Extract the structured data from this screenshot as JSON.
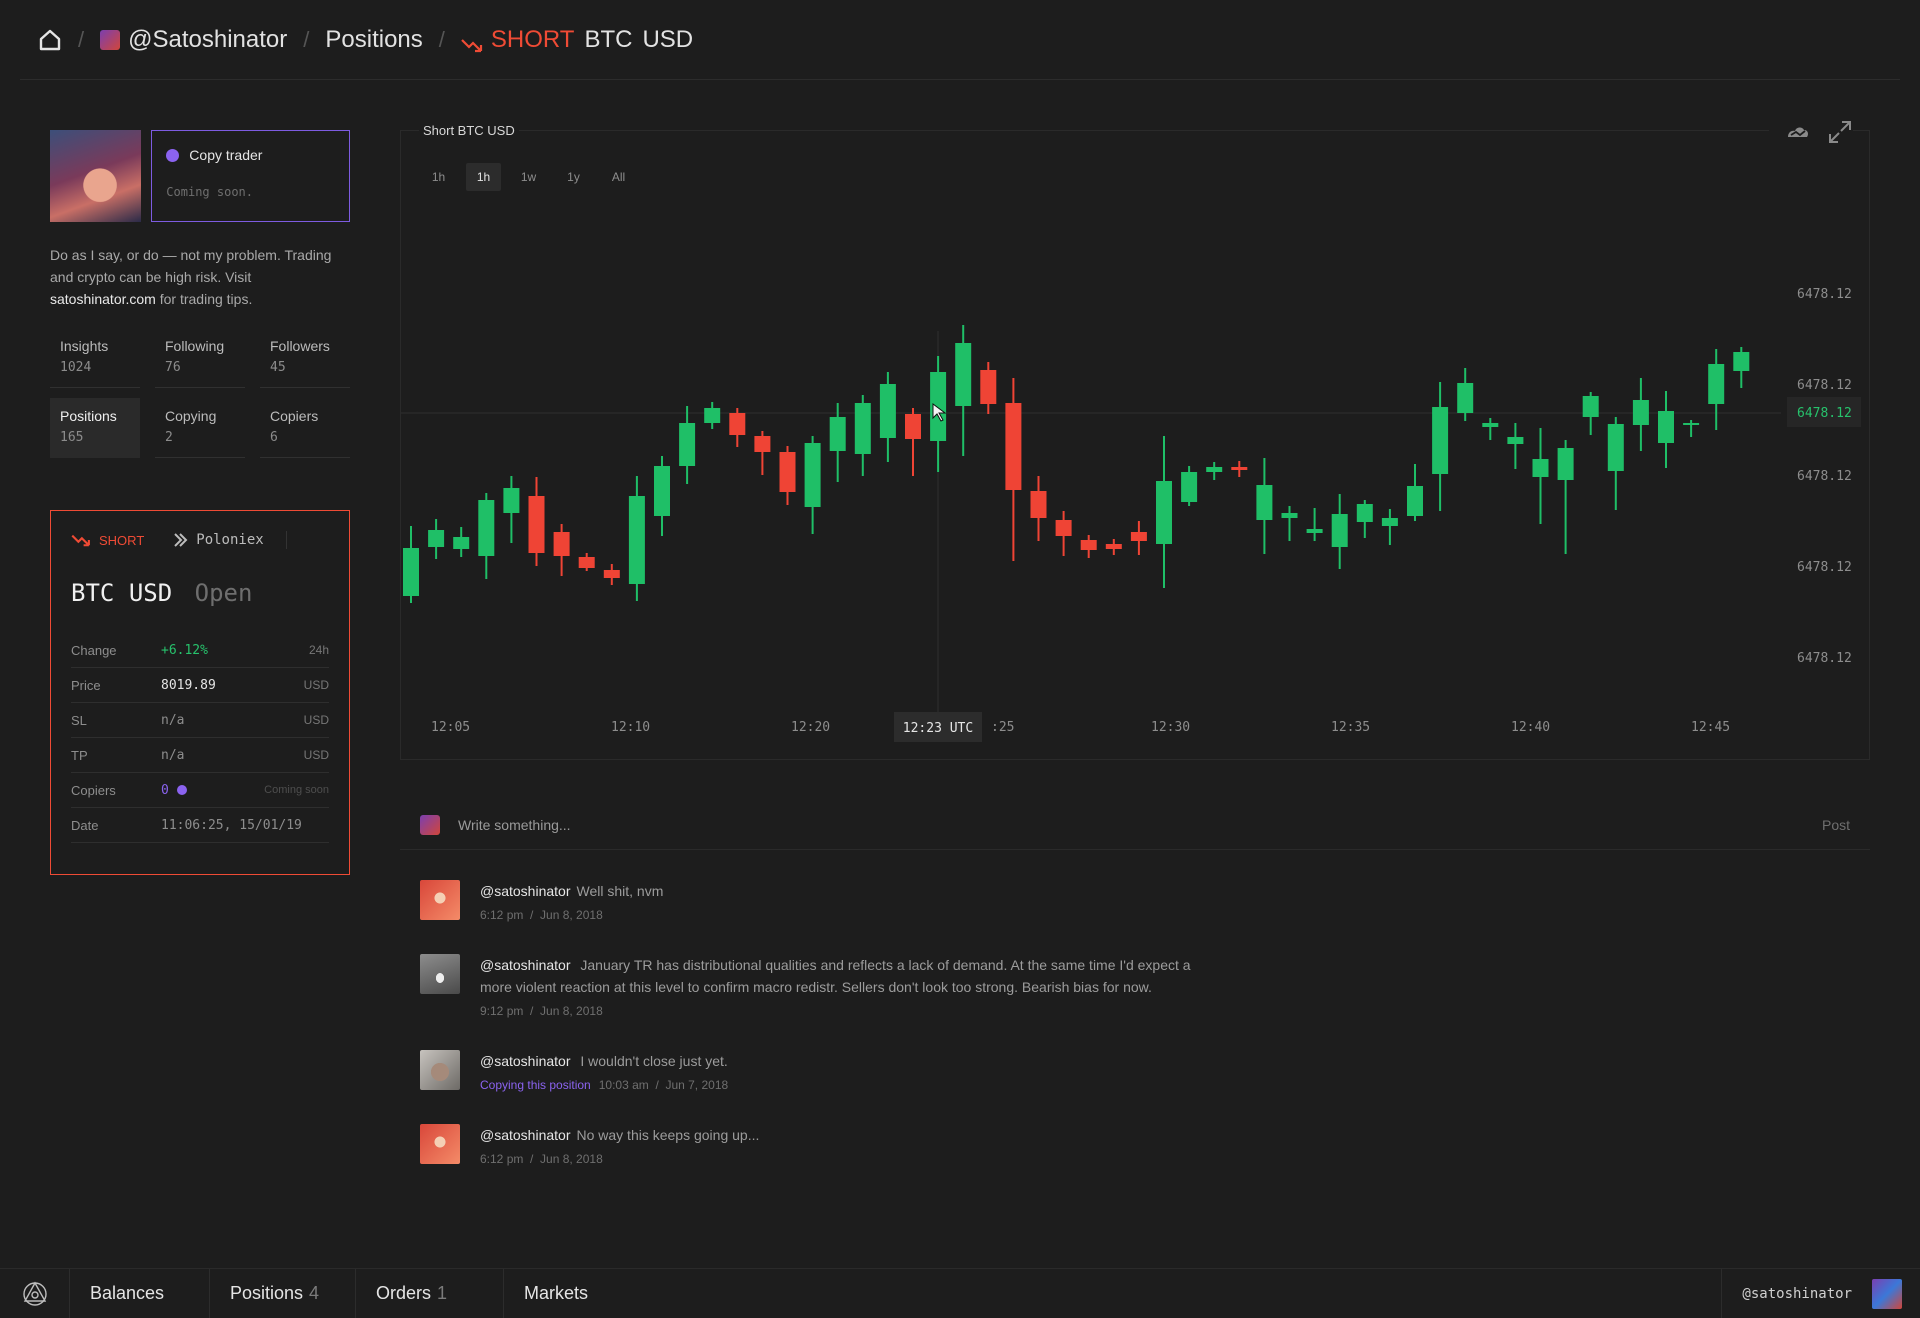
{
  "breadcrumb": {
    "user": "@Satoshinator",
    "section": "Positions",
    "side": "SHORT",
    "base": "BTC",
    "quote": "USD"
  },
  "profile": {
    "copy_trader": {
      "title": "Copy trader",
      "subtitle": "Coming soon."
    },
    "bio_before": "Do as I say, or do — not my problem. Trading and crypto can be high risk. Visit ",
    "bio_link": "satoshinator.com",
    "bio_after": " for trading tips.",
    "stats": [
      {
        "label": "Insights",
        "value": "1024"
      },
      {
        "label": "Following",
        "value": "76"
      },
      {
        "label": "Followers",
        "value": "45"
      },
      {
        "label": "Positions",
        "value": "165",
        "active": true
      },
      {
        "label": "Copying",
        "value": "2"
      },
      {
        "label": "Copiers",
        "value": "6"
      }
    ]
  },
  "position": {
    "side": "SHORT",
    "exchange": "Poloniex",
    "base": "BTC",
    "quote": "USD",
    "status": "Open",
    "rows": {
      "change": {
        "label": "Change",
        "value": "+6.12%",
        "unit": "24h"
      },
      "price": {
        "label": "Price",
        "value": "8019.89",
        "unit": "USD"
      },
      "sl": {
        "label": "SL",
        "value": "n/a",
        "unit": "USD"
      },
      "tp": {
        "label": "TP",
        "value": "n/a",
        "unit": "USD"
      },
      "copiers": {
        "label": "Copiers",
        "value": "0",
        "unit": "Coming soon"
      },
      "date": {
        "label": "Date",
        "value": "11:06:25, 15/01/19"
      }
    }
  },
  "chart": {
    "title": "Short BTC USD",
    "timeframes": [
      "1h",
      "1h",
      "1w",
      "1y",
      "All"
    ],
    "active_timeframe": 1,
    "crosshair_label": "12:23 UTC",
    "highlight_price": "6478.12",
    "colors": {
      "up": "#1fbf67",
      "down": "#ef4435",
      "bg": "#1d1d1d"
    }
  },
  "chart_data": {
    "type": "candlestick",
    "x_tick_labels": [
      "12:05",
      "12:10",
      "12:20",
      ":25",
      "12:30",
      "12:35",
      "12:40",
      "12:45"
    ],
    "y_tick_labels": [
      "6478.12",
      "6478.12",
      "6478.12",
      "6478.12",
      "6478.12"
    ],
    "candles": [
      [
        340,
        292,
        270,
        347
      ],
      [
        291,
        274,
        263,
        303
      ],
      [
        293,
        281,
        271,
        301
      ],
      [
        300,
        244,
        237,
        323
      ],
      [
        257,
        232,
        220,
        287
      ],
      [
        240,
        297,
        221,
        310
      ],
      [
        276,
        300,
        268,
        320
      ],
      [
        301,
        312,
        297,
        315
      ],
      [
        314,
        322,
        308,
        329
      ],
      [
        328,
        240,
        220,
        345
      ],
      [
        260,
        210,
        200,
        280
      ],
      [
        210,
        167,
        150,
        228
      ],
      [
        167,
        152,
        146,
        173
      ],
      [
        157,
        179,
        152,
        191
      ],
      [
        180,
        196,
        175,
        219
      ],
      [
        196,
        236,
        190,
        249
      ],
      [
        251,
        187,
        180,
        278
      ],
      [
        195,
        161,
        147,
        226
      ],
      [
        198,
        147,
        139,
        220
      ],
      [
        182,
        128,
        116,
        206
      ],
      [
        158,
        183,
        152,
        220
      ],
      [
        185,
        116,
        100,
        216
      ],
      [
        150,
        87,
        69,
        200
      ],
      [
        114,
        148,
        106,
        158
      ],
      [
        147,
        234,
        122,
        305
      ],
      [
        235,
        262,
        220,
        285
      ],
      [
        264,
        280,
        255,
        300
      ],
      [
        284,
        294,
        279,
        302
      ],
      [
        288,
        293,
        283,
        299
      ],
      [
        276,
        285,
        265,
        299
      ],
      [
        288,
        225,
        180,
        332
      ],
      [
        246,
        216,
        210,
        250
      ],
      [
        216,
        211,
        206,
        224
      ],
      [
        211,
        214,
        205,
        221
      ],
      [
        264,
        229,
        202,
        298
      ],
      [
        262,
        257,
        250,
        285
      ],
      [
        277,
        273,
        252,
        285
      ],
      [
        291,
        258,
        238,
        313
      ],
      [
        266,
        248,
        244,
        282
      ],
      [
        270,
        262,
        253,
        289
      ],
      [
        260,
        230,
        208,
        265
      ],
      [
        218,
        151,
        126,
        255
      ],
      [
        157,
        127,
        112,
        165
      ],
      [
        171,
        167,
        162,
        184
      ],
      [
        188,
        181,
        167,
        213
      ],
      [
        221,
        203,
        172,
        268
      ],
      [
        224,
        192,
        184,
        298
      ],
      [
        161,
        140,
        136,
        179
      ],
      [
        215,
        168,
        161,
        254
      ],
      [
        169,
        144,
        122,
        195
      ],
      [
        187,
        155,
        135,
        212
      ],
      [
        168,
        167,
        164,
        181
      ],
      [
        148,
        108,
        93,
        174
      ],
      [
        115,
        96,
        91,
        132
      ]
    ],
    "crosshair": {
      "x_label": "12:23 UTC",
      "price": "6478.12"
    }
  },
  "composer": {
    "placeholder": "Write something...",
    "post_label": "Post"
  },
  "feed": [
    {
      "user": "@satoshinator",
      "text": "Well shit, nvm",
      "time": "6:12 pm",
      "date": "Jun 8, 2018"
    },
    {
      "user": "@satoshinator",
      "text": "January TR has distributional qualities and reflects a lack of demand. At the same time I'd expect a more violent reaction at this level to confirm macro redistr. Sellers don't look too strong. Bearish bias for now.",
      "time": "9:12 pm",
      "date": "Jun 8, 2018"
    },
    {
      "user": "@satoshinator",
      "text": "I wouldn't close just yet.",
      "tag": "Copying this position",
      "time": "10:03 am",
      "date": "Jun 7, 2018"
    },
    {
      "user": "@satoshinator",
      "text": "No way this keeps going up...",
      "time": "6:12 pm",
      "date": "Jun 8, 2018"
    }
  ],
  "bottombar": {
    "items": [
      {
        "label": "Balances",
        "count": ""
      },
      {
        "label": "Positions",
        "count": "4"
      },
      {
        "label": "Orders",
        "count": "1"
      },
      {
        "label": "Markets",
        "count": ""
      }
    ],
    "user": "@satoshinator"
  }
}
